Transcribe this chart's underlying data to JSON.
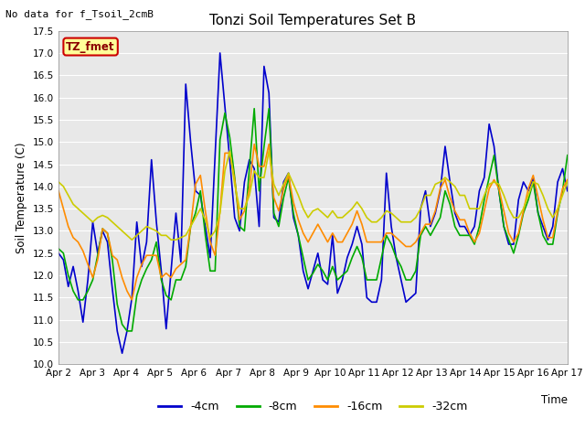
{
  "title": "Tonzi Soil Temperatures Set B",
  "no_data_text": "No data for f_Tsoil_2cmB",
  "xlabel": "Time",
  "ylabel": "Soil Temperature (C)",
  "ylim": [
    10.0,
    17.5
  ],
  "yticks": [
    10.0,
    10.5,
    11.0,
    11.5,
    12.0,
    12.5,
    13.0,
    13.5,
    14.0,
    14.5,
    15.0,
    15.5,
    16.0,
    16.5,
    17.0,
    17.5
  ],
  "xtick_labels": [
    "Apr 2",
    "Apr 3",
    "Apr 4",
    "Apr 5",
    "Apr 6",
    "Apr 7",
    "Apr 8",
    "Apr 9",
    "Apr 10",
    "Apr 11",
    "Apr 12",
    "Apr 13",
    "Apr 14",
    "Apr 15",
    "Apr 16",
    "Apr 17"
  ],
  "fig_bg_color": "#f0f0f0",
  "plot_bg_color": "#e8e8e8",
  "grid_color": "#ffffff",
  "legend_label_box": "TZ_fmet",
  "legend_box_bg": "#ffff99",
  "legend_box_border": "#cc0000",
  "legend_entries": [
    "-4cm",
    "-8cm",
    "-16cm",
    "-32cm"
  ],
  "legend_colors": [
    "#0000cc",
    "#00aa00",
    "#ff8c00",
    "#cccc00"
  ],
  "line_width": 1.2,
  "series": {
    "4cm": [
      12.5,
      12.35,
      11.75,
      12.2,
      11.65,
      10.95,
      11.9,
      13.2,
      12.5,
      13.0,
      12.75,
      11.7,
      10.75,
      10.25,
      10.75,
      11.5,
      13.2,
      12.2,
      12.75,
      14.6,
      13.2,
      12.1,
      10.8,
      12.1,
      13.4,
      12.3,
      16.3,
      15.0,
      13.9,
      13.8,
      13.1,
      12.4,
      14.7,
      17.0,
      15.8,
      14.6,
      13.3,
      13.0,
      14.1,
      14.6,
      14.4,
      13.1,
      16.7,
      16.1,
      13.3,
      13.2,
      14.1,
      14.3,
      13.3,
      12.9,
      12.1,
      11.7,
      12.1,
      12.5,
      11.9,
      11.8,
      12.9,
      11.6,
      11.9,
      12.4,
      12.7,
      13.1,
      12.7,
      11.5,
      11.4,
      11.4,
      11.9,
      14.3,
      13.1,
      12.4,
      11.9,
      11.4,
      11.5,
      11.6,
      13.5,
      13.9,
      13.1,
      13.4,
      13.9,
      14.9,
      14.1,
      13.4,
      13.1,
      13.1,
      12.9,
      13.1,
      13.9,
      14.2,
      15.4,
      14.9,
      13.9,
      13.1,
      12.7,
      12.7,
      13.7,
      14.1,
      13.9,
      14.2,
      13.4,
      13.1,
      12.8,
      13.1,
      14.1,
      14.4,
      13.9
    ],
    "8cm": [
      12.6,
      12.5,
      12.0,
      11.65,
      11.45,
      11.45,
      11.65,
      11.9,
      12.45,
      13.05,
      12.95,
      12.35,
      11.35,
      10.9,
      10.75,
      10.75,
      11.55,
      11.9,
      12.15,
      12.35,
      12.75,
      11.9,
      11.55,
      11.45,
      11.9,
      11.9,
      12.2,
      13.1,
      13.4,
      13.9,
      12.9,
      12.1,
      12.1,
      15.05,
      15.65,
      15.1,
      14.2,
      13.1,
      13.0,
      14.4,
      15.75,
      13.9,
      14.9,
      15.75,
      13.4,
      13.1,
      13.75,
      14.2,
      13.4,
      12.9,
      12.4,
      11.9,
      12.05,
      12.25,
      12.1,
      11.9,
      12.2,
      11.9,
      12.0,
      12.1,
      12.4,
      12.65,
      12.4,
      11.9,
      11.9,
      11.9,
      12.4,
      12.9,
      12.7,
      12.4,
      12.2,
      11.9,
      11.9,
      12.1,
      12.9,
      13.1,
      12.9,
      13.1,
      13.3,
      13.9,
      13.6,
      13.1,
      12.9,
      12.9,
      12.9,
      12.7,
      13.1,
      13.7,
      14.2,
      14.7,
      13.9,
      13.1,
      12.8,
      12.5,
      12.9,
      13.4,
      13.7,
      14.1,
      13.4,
      12.9,
      12.7,
      12.7,
      13.4,
      13.9,
      14.7
    ],
    "16cm": [
      13.9,
      13.5,
      13.1,
      12.85,
      12.75,
      12.55,
      12.25,
      11.95,
      12.35,
      13.05,
      12.95,
      12.45,
      12.35,
      11.95,
      11.65,
      11.45,
      11.95,
      12.25,
      12.45,
      12.45,
      12.45,
      11.95,
      12.05,
      11.95,
      12.15,
      12.25,
      12.35,
      13.1,
      14.05,
      14.25,
      13.45,
      12.75,
      12.45,
      13.45,
      14.75,
      14.75,
      14.15,
      13.25,
      13.45,
      13.95,
      14.95,
      14.45,
      14.45,
      14.95,
      13.75,
      13.45,
      13.95,
      14.25,
      13.65,
      13.25,
      12.95,
      12.75,
      12.95,
      13.15,
      12.95,
      12.75,
      12.95,
      12.75,
      12.75,
      12.95,
      13.15,
      13.45,
      13.15,
      12.75,
      12.75,
      12.75,
      12.75,
      12.95,
      12.95,
      12.85,
      12.75,
      12.65,
      12.65,
      12.75,
      12.95,
      13.15,
      13.15,
      13.45,
      13.95,
      14.15,
      13.75,
      13.45,
      13.25,
      13.25,
      12.95,
      12.75,
      12.95,
      13.45,
      13.95,
      14.15,
      13.95,
      13.45,
      12.95,
      12.75,
      12.95,
      13.45,
      13.95,
      14.25,
      13.75,
      13.25,
      12.85,
      12.85,
      13.45,
      13.95,
      14.15
    ],
    "32cm": [
      14.1,
      14.0,
      13.8,
      13.6,
      13.5,
      13.4,
      13.3,
      13.2,
      13.3,
      13.35,
      13.3,
      13.2,
      13.1,
      13.0,
      12.9,
      12.8,
      12.9,
      13.0,
      13.1,
      13.05,
      13.0,
      12.9,
      12.9,
      12.8,
      12.8,
      12.85,
      12.9,
      13.1,
      13.3,
      13.5,
      13.25,
      12.85,
      13.0,
      13.4,
      14.35,
      14.8,
      14.05,
      13.5,
      13.5,
      13.8,
      14.35,
      14.2,
      14.2,
      14.8,
      14.05,
      13.8,
      14.05,
      14.3,
      14.05,
      13.8,
      13.5,
      13.3,
      13.45,
      13.5,
      13.4,
      13.3,
      13.45,
      13.3,
      13.3,
      13.4,
      13.5,
      13.65,
      13.5,
      13.3,
      13.2,
      13.2,
      13.3,
      13.45,
      13.4,
      13.3,
      13.2,
      13.2,
      13.2,
      13.3,
      13.5,
      13.8,
      13.8,
      14.05,
      14.1,
      14.2,
      14.1,
      14.0,
      13.8,
      13.8,
      13.5,
      13.5,
      13.5,
      13.8,
      14.05,
      14.1,
      14.05,
      13.8,
      13.5,
      13.3,
      13.3,
      13.5,
      13.8,
      14.1,
      14.05,
      13.8,
      13.5,
      13.3,
      13.5,
      13.8,
      14.1
    ]
  }
}
